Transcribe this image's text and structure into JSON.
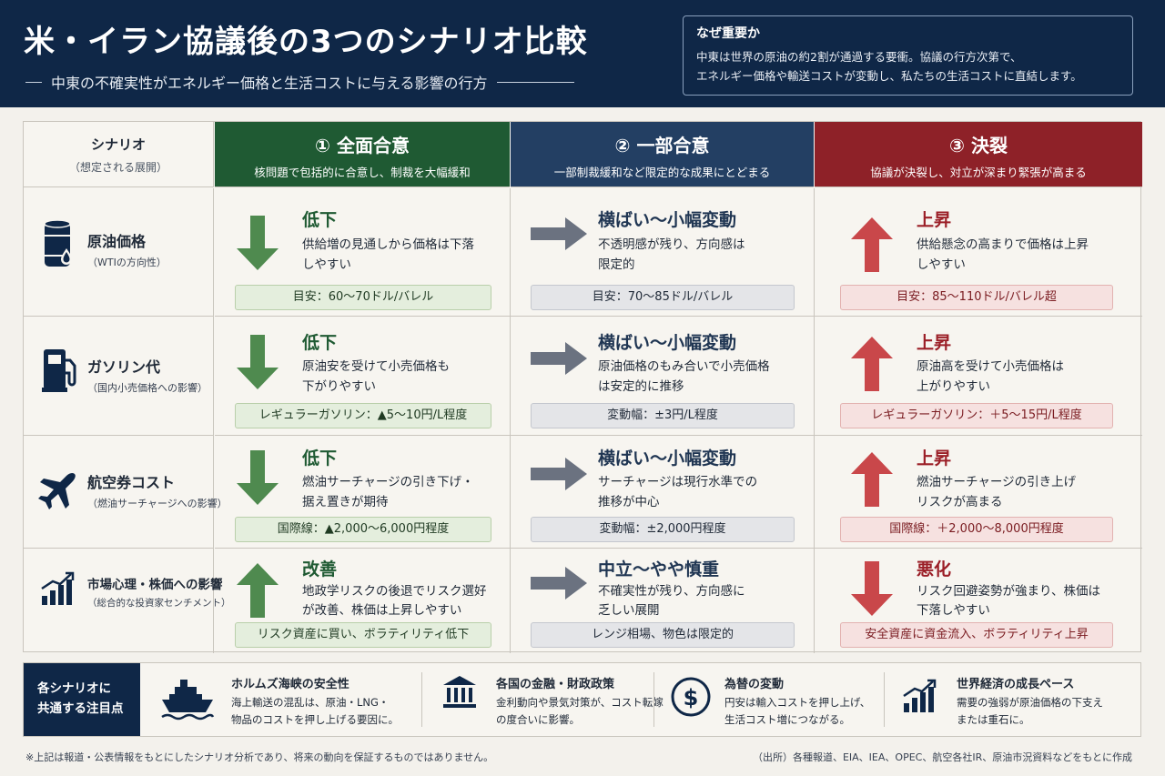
{
  "header": {
    "title": "米・イラン協議後の3つのシナリオ比較",
    "subtitle": "中東の不確実性がエネルギー価格と生活コストに与える影響の行方",
    "why": {
      "title": "なぜ重要か",
      "line1": "中東は世界の原油の約2割が通過する要衝。協議の行方次第で、",
      "line2": "エネルギー価格や輸送コストが変動し、私たちの生活コストに直結します。"
    }
  },
  "table": {
    "scenario_header": {
      "label": "シナリオ",
      "sub": "（想定される展開）"
    },
    "columns": [
      {
        "title": "① 全面合意",
        "sub": "核問題で包括的に合意し、制裁を大幅緩和",
        "color": "#1f5a33"
      },
      {
        "title": "② 一部合意",
        "sub": "一部制裁緩和など限定的な成果にとどまる",
        "color": "#233f63"
      },
      {
        "title": "③ 決裂",
        "sub": "協議が決裂し、対立が深まり緊張が高まる",
        "color": "#8e2128"
      }
    ],
    "rows": [
      {
        "icon": "oil-barrel-icon",
        "label": "原油価格",
        "sub": "（WTIの方向性）",
        "cells": [
          {
            "direction": "down",
            "head": "低下",
            "desc1": "供給増の見通しから価格は下落",
            "desc2": "しやすい",
            "pill": "目安：60〜70ドル/バレル"
          },
          {
            "direction": "flat",
            "head": "横ばい〜小幅変動",
            "desc1": "不透明感が残り、方向感は",
            "desc2": "限定的",
            "pill": "目安：70〜85ドル/バレル"
          },
          {
            "direction": "up",
            "head": "上昇",
            "desc1": "供給懸念の高まりで価格は上昇",
            "desc2": "しやすい",
            "pill": "目安：85〜110ドル/バレル超"
          }
        ]
      },
      {
        "icon": "fuel-pump-icon",
        "label": "ガソリン代",
        "sub": "（国内小売価格への影響）",
        "cells": [
          {
            "direction": "down",
            "head": "低下",
            "desc1": "原油安を受けて小売価格も",
            "desc2": "下がりやすい",
            "pill": "レギュラーガソリン：▲5〜10円/L程度"
          },
          {
            "direction": "flat",
            "head": "横ばい〜小幅変動",
            "desc1": "原油価格のもみ合いで小売価格",
            "desc2": "は安定的に推移",
            "pill": "変動幅：±3円/L程度"
          },
          {
            "direction": "up",
            "head": "上昇",
            "desc1": "原油高を受けて小売価格は",
            "desc2": "上がりやすい",
            "pill": "レギュラーガソリン：＋5〜15円/L程度"
          }
        ]
      },
      {
        "icon": "airplane-icon",
        "label": "航空券コスト",
        "sub": "（燃油サーチャージへの影響）",
        "cells": [
          {
            "direction": "down",
            "head": "低下",
            "desc1": "燃油サーチャージの引き下げ・",
            "desc2": "据え置きが期待",
            "pill": "国際線：▲2,000〜6,000円程度"
          },
          {
            "direction": "flat",
            "head": "横ばい〜小幅変動",
            "desc1": "サーチャージは現行水準での",
            "desc2": "推移が中心",
            "pill": "変動幅：±2,000円程度"
          },
          {
            "direction": "up",
            "head": "上昇",
            "desc1": "燃油サーチャージの引き上げ",
            "desc2": "リスクが高まる",
            "pill": "国際線：＋2,000〜8,000円程度"
          }
        ]
      },
      {
        "icon": "growth-chart-icon",
        "label": "市場心理・株価への影響",
        "sub": "（総合的な投資家センチメント）",
        "cells": [
          {
            "direction": "up",
            "head": "改善",
            "desc1": "地政学リスクの後退でリスク選好",
            "desc2": "が改善、株価は上昇しやすい",
            "pill": "リスク資産に買い、ボラティリティ低下"
          },
          {
            "direction": "flat",
            "head": "中立〜やや慎重",
            "desc1": "不確実性が残り、方向感に",
            "desc2": "乏しい展開",
            "pill": "レンジ相場、物色は限定的"
          },
          {
            "direction": "down",
            "head": "悪化",
            "desc1": "リスク回避姿勢が強まり、株価は",
            "desc2": "下落しやすい",
            "pill": "安全資産に資金流入、ボラティリティ上昇"
          }
        ]
      }
    ]
  },
  "common": {
    "label1": "各シナリオに",
    "label2": "共通する注目点",
    "items": [
      {
        "icon": "ship-icon",
        "title": "ホルムズ海峡の安全性",
        "line1": "海上輸送の混乱は、原油・LNG・",
        "line2": "物品のコストを押し上げる要因に。"
      },
      {
        "icon": "bank-icon",
        "title": "各国の金融・財政政策",
        "line1": "金利動向や景気対策が、コスト転嫁",
        "line2": "の度合いに影響。"
      },
      {
        "icon": "dollar-icon",
        "title": "為替の変動",
        "line1": "円安は輸入コストを押し上げ、",
        "line2": "生活コスト増につながる。"
      },
      {
        "icon": "growth-chart-icon",
        "title": "世界経済の成長ペース",
        "line1": "需要の強弱が原油価格の下支え",
        "line2": "または重石に。"
      }
    ]
  },
  "footer": {
    "note": "※上記は報道・公表情報をもとにしたシナリオ分析であり、将来の動向を保証するものではありません。",
    "source": "（出所）各種報道、EIA、IEA、OPEC、航空各社IR、原油市況資料などをもとに作成"
  },
  "colors": {
    "navy": "#0f2747",
    "green": "#4f8a4f",
    "blue_gray": "#6b7280",
    "red": "#c9474a"
  }
}
